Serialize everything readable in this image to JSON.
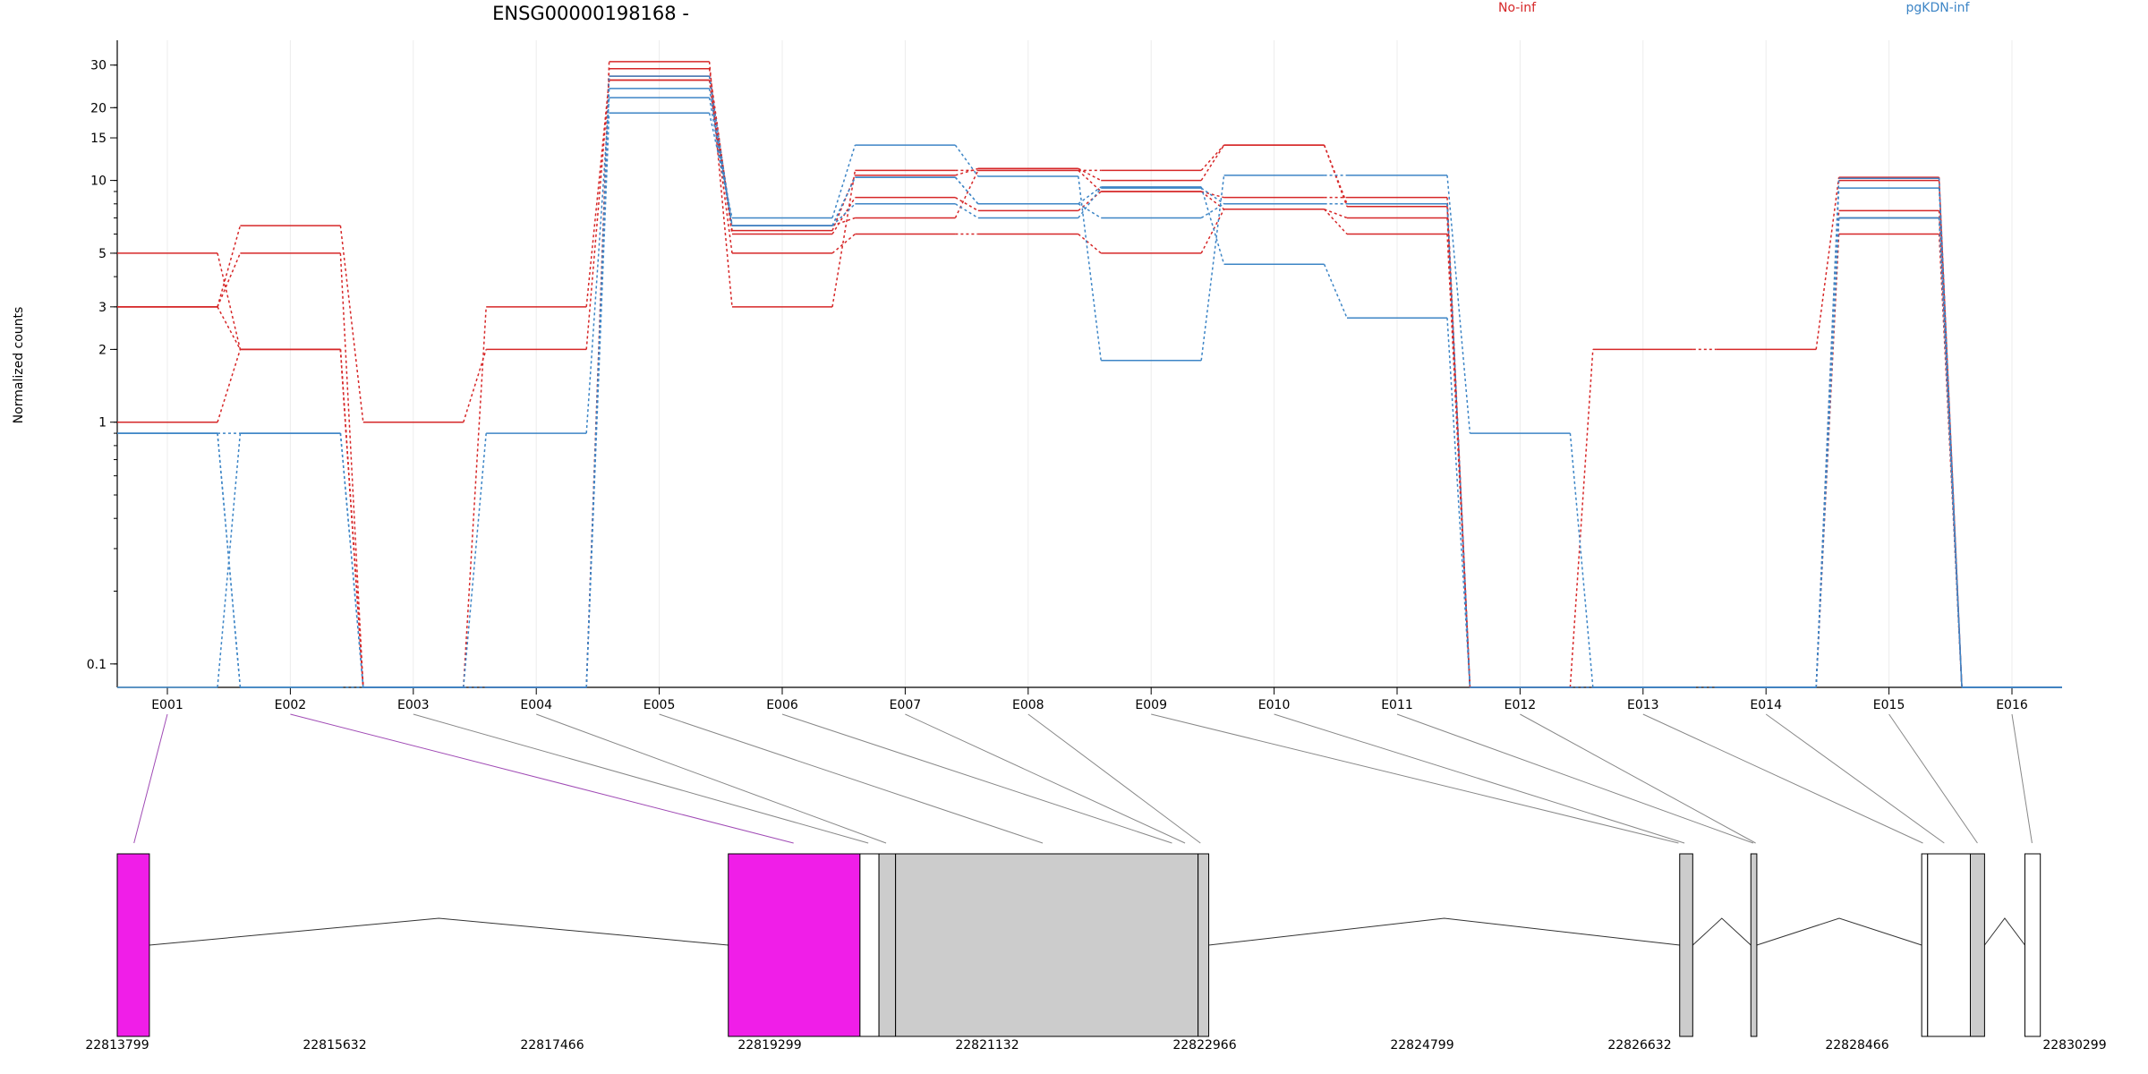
{
  "chart_data": {
    "type": "line",
    "title": "ENSG00000198168 -",
    "ylabel": "Normalized counts",
    "xlabel": "",
    "yscale": "log",
    "yticks": [
      0.1,
      1,
      2,
      3,
      5,
      10,
      15,
      20,
      30
    ],
    "ylim": [
      0.08,
      38
    ],
    "categories": [
      "E001",
      "E002",
      "E003",
      "E004",
      "E005",
      "E006",
      "E007",
      "E008",
      "E009",
      "E010",
      "E011",
      "E012",
      "E013",
      "E014",
      "E015",
      "E016"
    ],
    "legend": [
      {
        "label": "No-inf",
        "color": "#d62728"
      },
      {
        "label": "pgKDN-inf",
        "color": "#3d85c6"
      }
    ],
    "series": [
      {
        "group": "No-inf",
        "color": "#d62728",
        "values": [
          5,
          2,
          0.08,
          0.08,
          31,
          3,
          11,
          11,
          11,
          14,
          8,
          0.08,
          2,
          2,
          10.3,
          0.08
        ]
      },
      {
        "group": "No-inf",
        "color": "#d62728",
        "values": [
          3,
          5,
          0.08,
          0.08,
          29,
          6.2,
          10.5,
          11.2,
          10,
          14,
          7.8,
          0.08,
          0.08,
          0.08,
          10,
          0.08
        ]
      },
      {
        "group": "No-inf",
        "color": "#d62728",
        "values": [
          3,
          6.5,
          1,
          2,
          26,
          5,
          6,
          6,
          5,
          7.6,
          6,
          0.08,
          0.08,
          0.08,
          6,
          0.08
        ]
      },
      {
        "group": "No-inf",
        "color": "#d62728",
        "values": [
          1,
          2,
          0.08,
          3,
          26,
          6,
          8.5,
          7.5,
          9,
          8.5,
          8.5,
          0.08,
          0.08,
          0.08,
          7.5,
          0.08
        ]
      },
      {
        "group": "No-inf",
        "color": "#d62728",
        "values": [
          3,
          2,
          0.08,
          0.08,
          27,
          6.5,
          7,
          11,
          9,
          7.6,
          7,
          0.08,
          0.08,
          0.08,
          7,
          0.08
        ]
      },
      {
        "group": "pgKDN-inf",
        "color": "#3d85c6",
        "values": [
          0.9,
          0.08,
          0.08,
          0.08,
          19,
          7,
          14,
          10.4,
          1.8,
          10.5,
          10.5,
          0.9,
          0.08,
          0.08,
          9.3,
          0.08
        ]
      },
      {
        "group": "pgKDN-inf",
        "color": "#3d85c6",
        "values": [
          0.9,
          0.9,
          0.08,
          0.9,
          22,
          6.5,
          10.3,
          8,
          9.4,
          4.5,
          2.7,
          0.08,
          0.08,
          0.08,
          7,
          0.08
        ]
      },
      {
        "group": "pgKDN-inf",
        "color": "#3d85c6",
        "values": [
          0.08,
          0.9,
          0.08,
          0.08,
          24,
          6.5,
          8,
          7,
          9.3,
          8,
          8,
          0.08,
          0.08,
          0.08,
          7,
          0.08
        ]
      },
      {
        "group": "pgKDN-inf",
        "color": "#3d85c6",
        "values": [
          0.9,
          0.08,
          0.08,
          0.08,
          27,
          6.5,
          10.3,
          8,
          7,
          8,
          8,
          0.08,
          0.08,
          0.08,
          10.2,
          0.08
        ]
      }
    ],
    "gene_model": {
      "coordinate_labels": [
        "22813799",
        "22815632",
        "22817466",
        "22819299",
        "22821132",
        "22822966",
        "22824799",
        "22826632",
        "22828466",
        "22830299"
      ],
      "coord_start": 22813799,
      "coord_end": 22830299,
      "exons": [
        {
          "start": 22813799,
          "end": 22814070,
          "color": "#f01ee8"
        },
        {
          "start": 22818950,
          "end": 22820060,
          "color": "#f01ee8"
        },
        {
          "start": 22820060,
          "end": 22820220,
          "color": "#ffffff"
        },
        {
          "start": 22820220,
          "end": 22820360,
          "color": "#cccccc"
        },
        {
          "start": 22820360,
          "end": 22822910,
          "color": "#cccccc"
        },
        {
          "start": 22822910,
          "end": 22823000,
          "color": "#cccccc"
        },
        {
          "start": 22826970,
          "end": 22827080,
          "color": "#cccccc"
        },
        {
          "start": 22827570,
          "end": 22827620,
          "color": "#cccccc"
        },
        {
          "start": 22829010,
          "end": 22829060,
          "color": "#ffffff"
        },
        {
          "start": 22829060,
          "end": 22829420,
          "color": "#ffffff"
        },
        {
          "start": 22829420,
          "end": 22829540,
          "color": "#cccccc"
        },
        {
          "start": 22829880,
          "end": 22830010,
          "color": "#ffffff"
        }
      ],
      "introns": [
        [
          22814070,
          22818950
        ],
        [
          22823000,
          22826970
        ],
        [
          22827080,
          22827570
        ],
        [
          22827620,
          22829010
        ],
        [
          22829540,
          22829880
        ]
      ],
      "connectors": [
        {
          "exon": "E001",
          "coord": 22813940,
          "color": "#a04bb5"
        },
        {
          "exon": "E002",
          "coord": 22819500,
          "color": "#a04bb5"
        },
        {
          "exon": "E003",
          "coord": 22820130,
          "color": "#888888"
        },
        {
          "exon": "E004",
          "coord": 22820280,
          "color": "#888888"
        },
        {
          "exon": "E005",
          "coord": 22821600,
          "color": "#888888"
        },
        {
          "exon": "E006",
          "coord": 22822690,
          "color": "#888888"
        },
        {
          "exon": "E007",
          "coord": 22822800,
          "color": "#888888"
        },
        {
          "exon": "E008",
          "coord": 22822930,
          "color": "#888888"
        },
        {
          "exon": "E009",
          "coord": 22826960,
          "color": "#888888"
        },
        {
          "exon": "E010",
          "coord": 22827010,
          "color": "#888888"
        },
        {
          "exon": "E011",
          "coord": 22827590,
          "color": "#888888"
        },
        {
          "exon": "E012",
          "coord": 22827610,
          "color": "#888888"
        },
        {
          "exon": "E013",
          "coord": 22829020,
          "color": "#888888"
        },
        {
          "exon": "E014",
          "coord": 22829200,
          "color": "#888888"
        },
        {
          "exon": "E015",
          "coord": 22829480,
          "color": "#888888"
        },
        {
          "exon": "E016",
          "coord": 22829940,
          "color": "#888888"
        }
      ]
    }
  }
}
